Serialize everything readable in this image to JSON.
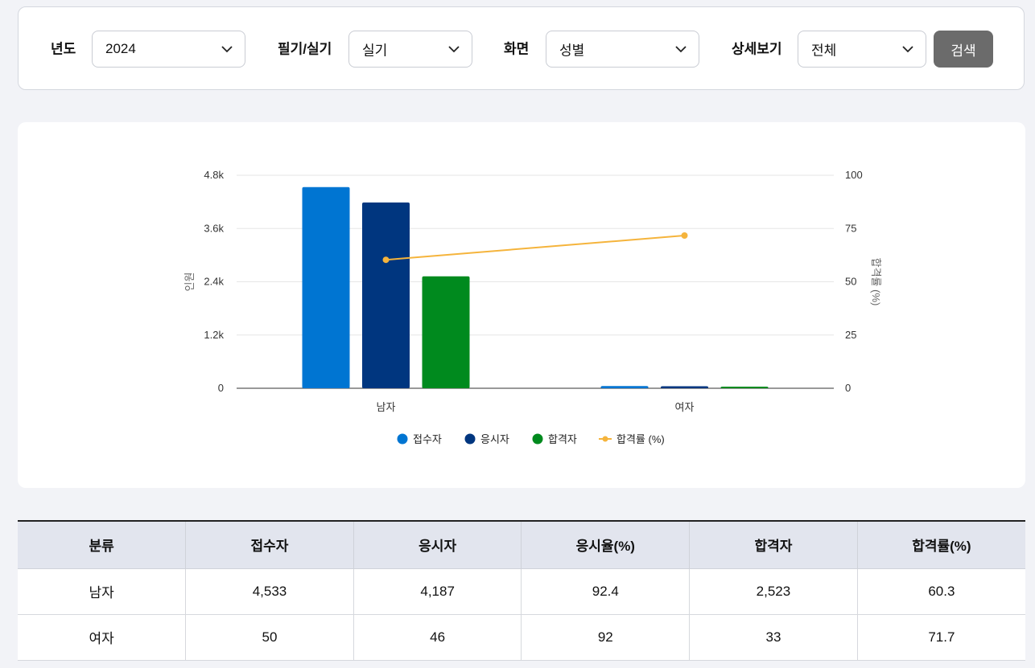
{
  "filters": {
    "year": {
      "label": "년도",
      "value": "2024"
    },
    "exam_type": {
      "label": "필기/실기",
      "value": "실기"
    },
    "screen": {
      "label": "화면",
      "value": "성별"
    },
    "detail": {
      "label": "상세보기",
      "value": "전체"
    },
    "search_label": "검색"
  },
  "colors": {
    "applicants": "#0075d2",
    "examinees": "#00367f",
    "passers": "#008a1e",
    "pass_rate": "#f5b43c"
  },
  "chart_data": {
    "type": "bar",
    "categories": [
      "남자",
      "여자"
    ],
    "series": [
      {
        "name": "접수자",
        "type": "bar",
        "axis": "left",
        "values": [
          4533,
          50
        ]
      },
      {
        "name": "응시자",
        "type": "bar",
        "axis": "left",
        "values": [
          4187,
          46
        ]
      },
      {
        "name": "합격자",
        "type": "bar",
        "axis": "left",
        "values": [
          2523,
          33
        ]
      },
      {
        "name": "합격률 (%)",
        "type": "line",
        "axis": "right",
        "values": [
          60.3,
          71.7
        ]
      }
    ],
    "ylabel": "인원",
    "y2label": "합격률 (%)",
    "ylim": [
      0,
      4800
    ],
    "y2lim": [
      0,
      100
    ],
    "yticks": [
      "0",
      "1.2k",
      "2.4k",
      "3.6k",
      "4.8k"
    ],
    "y2ticks": [
      "0",
      "25",
      "50",
      "75",
      "100"
    ],
    "grid": true,
    "legend": "bottom"
  },
  "table": {
    "headers": [
      "분류",
      "접수자",
      "응시자",
      "응시율(%)",
      "합격자",
      "합격률(%)"
    ],
    "rows": [
      [
        "남자",
        "4,533",
        "4,187",
        "92.4",
        "2,523",
        "60.3"
      ],
      [
        "여자",
        "50",
        "46",
        "92",
        "33",
        "71.7"
      ]
    ]
  }
}
